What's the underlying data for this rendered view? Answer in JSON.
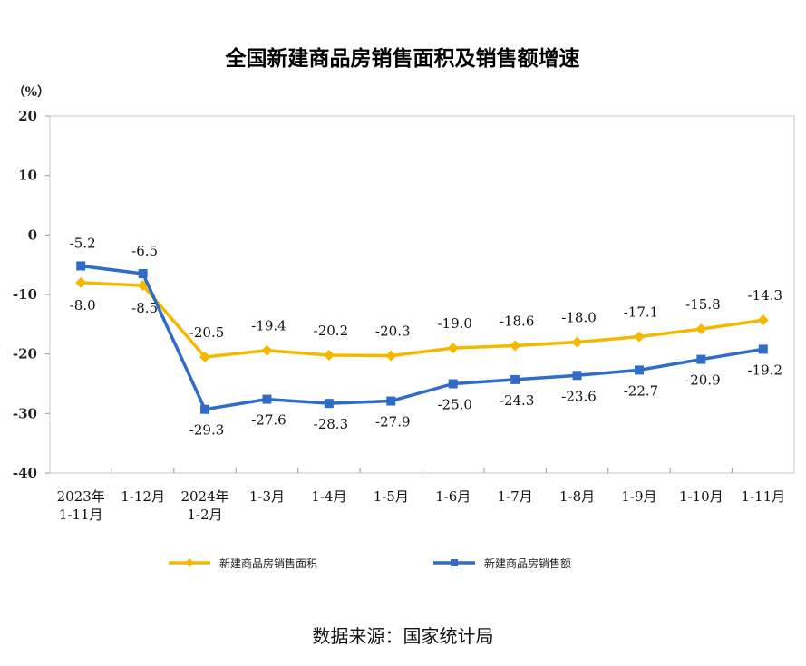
{
  "chart_data": {
    "type": "line",
    "title": "全国新建商品房销售面积及销售额增速",
    "ylabel": "（%）",
    "ylim": [
      -40,
      20
    ],
    "yticks": [
      20,
      10,
      0,
      -10,
      -20,
      -30,
      -40
    ],
    "categories": [
      [
        "2023年",
        "1-11月"
      ],
      [
        "1-12月"
      ],
      [
        "2024年",
        "1-2月"
      ],
      [
        "1-3月"
      ],
      [
        "1-4月"
      ],
      [
        "1-5月"
      ],
      [
        "1-6月"
      ],
      [
        "1-7月"
      ],
      [
        "1-8月"
      ],
      [
        "1-9月"
      ],
      [
        "1-10月"
      ],
      [
        "1-11月"
      ]
    ],
    "series": [
      {
        "name": "新建商品房销售面积",
        "color": "#F5B800",
        "marker": "diamond",
        "values": [
          -8.0,
          -8.5,
          -20.5,
          -19.4,
          -20.2,
          -20.3,
          -19.0,
          -18.6,
          -18.0,
          -17.1,
          -15.8,
          -14.3
        ],
        "labels": [
          "-8.0",
          "-8.5",
          "-20.5",
          "-19.4",
          "-20.2",
          "-20.3",
          "-19.0",
          "-18.6",
          "-18.0",
          "-17.1",
          "-15.8",
          "-14.3"
        ]
      },
      {
        "name": "新建商品房销售额",
        "color": "#2E6CC8",
        "marker": "square",
        "values": [
          -5.2,
          -6.5,
          -29.3,
          -27.6,
          -28.3,
          -27.9,
          -25.0,
          -24.3,
          -23.6,
          -22.7,
          -20.9,
          -19.2
        ],
        "labels": [
          "-5.2",
          "-6.5",
          "-29.3",
          "-27.6",
          "-28.3",
          "-27.9",
          "-25.0",
          "-24.3",
          "-23.6",
          "-22.7",
          "-20.9",
          "-19.2"
        ]
      }
    ],
    "grid": false,
    "legend": "bottom"
  },
  "source_text": "数据来源：国家统计局"
}
